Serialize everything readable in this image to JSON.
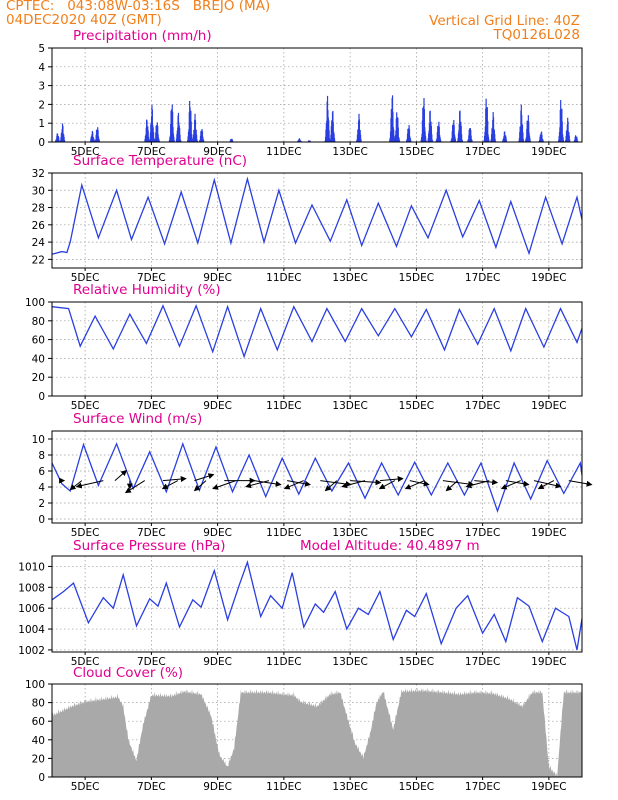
{
  "header": {
    "source": "CPTEC:",
    "coords": "043:08W-03:16S",
    "station": "BREJO (MA)",
    "run": "04DEC2020 40Z (GMT)",
    "grid_note": "Vertical Grid Line: 40Z",
    "model": "TQ0126L028",
    "altitude": "Model Altitude: 40.4897 m"
  },
  "colors": {
    "header": "#f07f1c",
    "title": "#e0008f",
    "line": "#2a3fe0",
    "bar": "#2a3fe0",
    "cloud": "#a9a9a9"
  },
  "x_ticks": [
    "5DEC",
    "7DEC",
    "9DEC",
    "11DEC",
    "13DEC",
    "15DEC",
    "17DEC",
    "19DEC"
  ],
  "chart_data": [
    {
      "type": "bar",
      "title": "Precipitation (mm/h)",
      "ylim": [
        0,
        5
      ],
      "yticks": [
        "0",
        "1",
        "2",
        "3",
        "4",
        "5"
      ],
      "x_range_days": [
        4.0,
        20.0
      ],
      "events": [
        {
          "t": 4.15,
          "v": 0.5
        },
        {
          "t": 4.3,
          "v": 1.0
        },
        {
          "t": 5.2,
          "v": 0.6
        },
        {
          "t": 5.35,
          "v": 0.9
        },
        {
          "t": 6.85,
          "v": 1.3
        },
        {
          "t": 7.0,
          "v": 2.0
        },
        {
          "t": 7.15,
          "v": 1.2
        },
        {
          "t": 7.6,
          "v": 2.3
        },
        {
          "t": 7.8,
          "v": 1.6
        },
        {
          "t": 8.15,
          "v": 2.4
        },
        {
          "t": 8.3,
          "v": 1.5
        },
        {
          "t": 8.5,
          "v": 0.8
        },
        {
          "t": 9.4,
          "v": 0.2
        },
        {
          "t": 11.45,
          "v": 0.2
        },
        {
          "t": 11.75,
          "v": 0.1
        },
        {
          "t": 12.3,
          "v": 2.5
        },
        {
          "t": 12.45,
          "v": 1.8
        },
        {
          "t": 13.25,
          "v": 1.5
        },
        {
          "t": 14.25,
          "v": 2.7
        },
        {
          "t": 14.4,
          "v": 1.8
        },
        {
          "t": 14.75,
          "v": 1.0
        },
        {
          "t": 15.2,
          "v": 2.6
        },
        {
          "t": 15.4,
          "v": 1.8
        },
        {
          "t": 15.65,
          "v": 1.2
        },
        {
          "t": 16.1,
          "v": 1.3
        },
        {
          "t": 16.3,
          "v": 1.8
        },
        {
          "t": 16.6,
          "v": 0.9
        },
        {
          "t": 17.1,
          "v": 2.6
        },
        {
          "t": 17.3,
          "v": 1.6
        },
        {
          "t": 17.65,
          "v": 0.6
        },
        {
          "t": 18.15,
          "v": 2.0
        },
        {
          "t": 18.35,
          "v": 1.6
        },
        {
          "t": 18.75,
          "v": 0.6
        },
        {
          "t": 19.35,
          "v": 2.5
        },
        {
          "t": 19.55,
          "v": 1.3
        },
        {
          "t": 19.8,
          "v": 0.4
        }
      ]
    },
    {
      "type": "line",
      "title": "Surface Temperature (nC)",
      "ylim": [
        21,
        32
      ],
      "yticks": [
        "22",
        "24",
        "26",
        "28",
        "30",
        "32"
      ],
      "x_range_days": [
        4.0,
        20.0
      ],
      "points": [
        [
          4.0,
          22.6
        ],
        [
          4.3,
          22.9
        ],
        [
          4.45,
          22.8
        ],
        [
          4.55,
          24.0
        ],
        [
          4.9,
          30.6
        ],
        [
          5.4,
          24.5
        ],
        [
          5.95,
          30.0
        ],
        [
          6.4,
          24.3
        ],
        [
          6.9,
          29.2
        ],
        [
          7.4,
          23.8
        ],
        [
          7.9,
          29.8
        ],
        [
          8.4,
          23.9
        ],
        [
          8.9,
          31.2
        ],
        [
          9.4,
          23.9
        ],
        [
          9.9,
          31.3
        ],
        [
          10.4,
          24.0
        ],
        [
          10.85,
          30.0
        ],
        [
          11.35,
          23.9
        ],
        [
          11.85,
          28.3
        ],
        [
          12.4,
          24.1
        ],
        [
          12.9,
          28.9
        ],
        [
          13.35,
          23.6
        ],
        [
          13.85,
          28.5
        ],
        [
          14.4,
          23.5
        ],
        [
          14.85,
          28.2
        ],
        [
          15.35,
          24.5
        ],
        [
          15.9,
          30.0
        ],
        [
          16.4,
          24.6
        ],
        [
          16.9,
          28.8
        ],
        [
          17.4,
          23.4
        ],
        [
          17.85,
          28.7
        ],
        [
          18.4,
          22.7
        ],
        [
          18.9,
          29.2
        ],
        [
          19.4,
          23.8
        ],
        [
          19.85,
          29.2
        ],
        [
          20.0,
          26.6
        ]
      ]
    },
    {
      "type": "line",
      "title": "Relative Humidity (%)",
      "ylim": [
        0,
        100
      ],
      "yticks": [
        "0",
        "20",
        "40",
        "60",
        "80",
        "100"
      ],
      "x_range_days": [
        4.0,
        20.0
      ],
      "points": [
        [
          4.0,
          95
        ],
        [
          4.5,
          93
        ],
        [
          4.85,
          53
        ],
        [
          5.3,
          85
        ],
        [
          5.85,
          50
        ],
        [
          6.35,
          87
        ],
        [
          6.85,
          56
        ],
        [
          7.35,
          96
        ],
        [
          7.85,
          53
        ],
        [
          8.35,
          96
        ],
        [
          8.85,
          47
        ],
        [
          9.3,
          95
        ],
        [
          9.8,
          42
        ],
        [
          10.3,
          93
        ],
        [
          10.8,
          49
        ],
        [
          11.3,
          95
        ],
        [
          11.85,
          58
        ],
        [
          12.3,
          93
        ],
        [
          12.85,
          58
        ],
        [
          13.35,
          93
        ],
        [
          13.85,
          64
        ],
        [
          14.35,
          93
        ],
        [
          14.85,
          63
        ],
        [
          15.3,
          92
        ],
        [
          15.85,
          49
        ],
        [
          16.3,
          92
        ],
        [
          16.85,
          55
        ],
        [
          17.35,
          93
        ],
        [
          17.85,
          48
        ],
        [
          18.3,
          93
        ],
        [
          18.85,
          52
        ],
        [
          19.35,
          93
        ],
        [
          19.85,
          57
        ],
        [
          20.0,
          72
        ]
      ]
    },
    {
      "type": "line",
      "title": "Surface Wind (m/s)",
      "ylim": [
        -0.5,
        11
      ],
      "yticks": [
        "0",
        "2",
        "4",
        "6",
        "8",
        "10"
      ],
      "x_range_days": [
        4.0,
        20.0
      ],
      "points": [
        [
          4.0,
          7.0
        ],
        [
          4.3,
          4.4
        ],
        [
          4.55,
          3.5
        ],
        [
          4.95,
          9.3
        ],
        [
          5.4,
          4.2
        ],
        [
          5.95,
          9.4
        ],
        [
          6.45,
          3.8
        ],
        [
          6.95,
          8.4
        ],
        [
          7.45,
          3.4
        ],
        [
          7.95,
          9.4
        ],
        [
          8.45,
          3.6
        ],
        [
          8.95,
          9.0
        ],
        [
          9.45,
          3.4
        ],
        [
          9.95,
          8.0
        ],
        [
          10.45,
          2.8
        ],
        [
          10.95,
          7.6
        ],
        [
          11.45,
          3.1
        ],
        [
          11.95,
          7.6
        ],
        [
          12.45,
          3.5
        ],
        [
          12.95,
          7.0
        ],
        [
          13.45,
          2.6
        ],
        [
          13.95,
          7.0
        ],
        [
          14.45,
          3.0
        ],
        [
          14.95,
          7.1
        ],
        [
          15.45,
          3.0
        ],
        [
          15.95,
          7.0
        ],
        [
          16.45,
          3.0
        ],
        [
          16.95,
          7.0
        ],
        [
          17.45,
          1.0
        ],
        [
          17.95,
          7.0
        ],
        [
          18.45,
          2.5
        ],
        [
          18.95,
          7.3
        ],
        [
          19.45,
          3.2
        ],
        [
          19.95,
          7.0
        ],
        [
          20.0,
          5.5
        ]
      ],
      "arrows": [
        [
          4.25,
          2,
          0
        ],
        [
          4.9,
          -6,
          -9
        ],
        [
          5.55,
          -14,
          -6
        ],
        [
          5.9,
          6,
          10
        ],
        [
          6.35,
          0,
          -8
        ],
        [
          6.8,
          -10,
          -12
        ],
        [
          7.35,
          12,
          2
        ],
        [
          7.8,
          -8,
          -8
        ],
        [
          8.3,
          10,
          6
        ],
        [
          8.65,
          -6,
          -10
        ],
        [
          9.2,
          16,
          0
        ],
        [
          9.55,
          -12,
          -8
        ],
        [
          10.1,
          14,
          -4
        ],
        [
          10.55,
          -12,
          -6
        ],
        [
          11.1,
          12,
          -4
        ],
        [
          11.6,
          -10,
          -8
        ],
        [
          12.1,
          16,
          -4
        ],
        [
          12.6,
          -6,
          -10
        ],
        [
          13.0,
          16,
          -2
        ],
        [
          13.45,
          -12,
          -6
        ],
        [
          13.9,
          12,
          2
        ],
        [
          14.35,
          -8,
          -8
        ],
        [
          14.8,
          10,
          -4
        ],
        [
          15.25,
          -10,
          -8
        ],
        [
          15.8,
          16,
          -4
        ],
        [
          16.25,
          -6,
          -10
        ],
        [
          16.75,
          12,
          -2
        ],
        [
          17.2,
          -12,
          -6
        ],
        [
          17.7,
          12,
          -4
        ],
        [
          18.15,
          -10,
          -8
        ],
        [
          18.55,
          14,
          -6
        ],
        [
          19.15,
          -8,
          -8
        ],
        [
          19.6,
          12,
          -4
        ]
      ]
    },
    {
      "type": "line",
      "title": "Surface Pressure (hPa)",
      "ylim": [
        1001.8,
        1011
      ],
      "yticks": [
        "1002",
        "1004",
        "1006",
        "1008",
        "1010"
      ],
      "x_range_days": [
        4.0,
        20.0
      ],
      "points": [
        [
          4.0,
          1006.8
        ],
        [
          4.35,
          1007.6
        ],
        [
          4.65,
          1008.4
        ],
        [
          5.1,
          1004.6
        ],
        [
          5.55,
          1007.0
        ],
        [
          5.85,
          1006.0
        ],
        [
          6.15,
          1009.2
        ],
        [
          6.55,
          1004.3
        ],
        [
          6.95,
          1006.9
        ],
        [
          7.2,
          1006.2
        ],
        [
          7.45,
          1008.4
        ],
        [
          7.85,
          1004.2
        ],
        [
          8.25,
          1006.8
        ],
        [
          8.5,
          1006.1
        ],
        [
          8.9,
          1009.6
        ],
        [
          9.3,
          1004.9
        ],
        [
          9.65,
          1008.2
        ],
        [
          9.9,
          1010.4
        ],
        [
          10.3,
          1005.2
        ],
        [
          10.6,
          1007.2
        ],
        [
          10.95,
          1006.0
        ],
        [
          11.25,
          1009.4
        ],
        [
          11.6,
          1004.2
        ],
        [
          11.95,
          1006.4
        ],
        [
          12.2,
          1005.6
        ],
        [
          12.55,
          1007.6
        ],
        [
          12.9,
          1004.0
        ],
        [
          13.25,
          1006.0
        ],
        [
          13.55,
          1005.4
        ],
        [
          13.9,
          1007.6
        ],
        [
          14.3,
          1003.0
        ],
        [
          14.7,
          1005.8
        ],
        [
          14.95,
          1005.2
        ],
        [
          15.3,
          1007.4
        ],
        [
          15.75,
          1002.6
        ],
        [
          16.2,
          1006.0
        ],
        [
          16.55,
          1007.2
        ],
        [
          17.0,
          1003.6
        ],
        [
          17.35,
          1005.4
        ],
        [
          17.7,
          1002.8
        ],
        [
          18.05,
          1007.0
        ],
        [
          18.4,
          1006.2
        ],
        [
          18.8,
          1002.8
        ],
        [
          19.2,
          1006.0
        ],
        [
          19.6,
          1005.2
        ],
        [
          19.85,
          1002.0
        ],
        [
          20.0,
          1005.0
        ]
      ]
    },
    {
      "type": "area",
      "title": "Cloud Cover (%)",
      "ylim": [
        0,
        100
      ],
      "yticks": [
        "0",
        "20",
        "40",
        "60",
        "80",
        "100"
      ],
      "x_range_days": [
        4.0,
        20.0
      ],
      "points": [
        [
          4.0,
          70
        ],
        [
          4.6,
          80
        ],
        [
          5.0,
          85
        ],
        [
          5.6,
          88
        ],
        [
          6.0,
          90
        ],
        [
          6.15,
          80
        ],
        [
          6.3,
          45
        ],
        [
          6.45,
          30
        ],
        [
          6.55,
          22
        ],
        [
          6.75,
          60
        ],
        [
          7.0,
          92
        ],
        [
          7.6,
          91
        ],
        [
          8.0,
          96
        ],
        [
          8.5,
          93
        ],
        [
          8.8,
          70
        ],
        [
          9.05,
          28
        ],
        [
          9.3,
          15
        ],
        [
          9.5,
          35
        ],
        [
          9.7,
          95
        ],
        [
          10.5,
          95
        ],
        [
          11.0,
          93
        ],
        [
          11.3,
          92
        ],
        [
          11.5,
          85
        ],
        [
          12.0,
          80
        ],
        [
          12.4,
          93
        ],
        [
          12.7,
          95
        ],
        [
          12.9,
          70
        ],
        [
          13.15,
          40
        ],
        [
          13.4,
          25
        ],
        [
          13.6,
          50
        ],
        [
          13.8,
          84
        ],
        [
          14.0,
          96
        ],
        [
          14.3,
          55
        ],
        [
          14.55,
          96
        ],
        [
          15.2,
          97
        ],
        [
          15.8,
          95
        ],
        [
          16.3,
          93
        ],
        [
          16.8,
          95
        ],
        [
          17.3,
          94
        ],
        [
          17.8,
          88
        ],
        [
          18.2,
          80
        ],
        [
          18.5,
          95
        ],
        [
          18.8,
          95
        ],
        [
          19.0,
          15
        ],
        [
          19.25,
          5
        ],
        [
          19.45,
          95
        ],
        [
          19.9,
          95
        ],
        [
          20.0,
          96
        ]
      ]
    }
  ]
}
